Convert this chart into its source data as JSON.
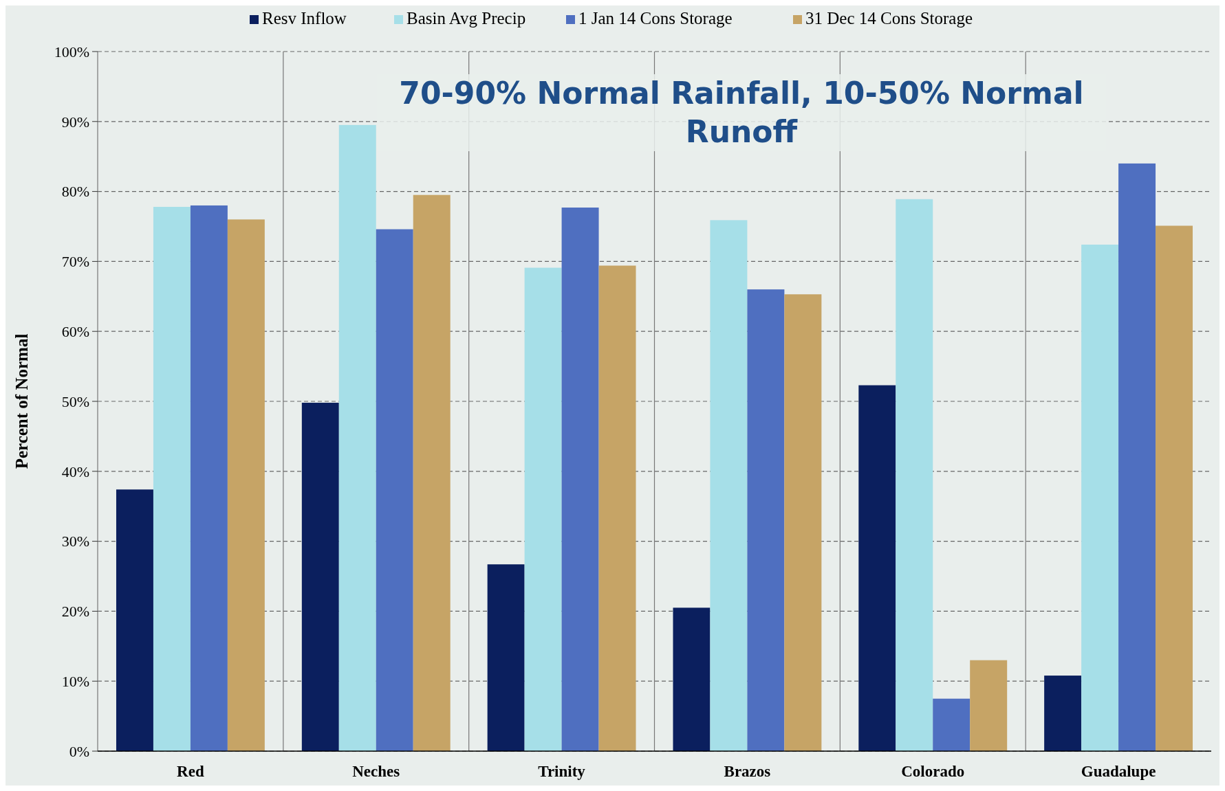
{
  "chart_data": {
    "type": "bar",
    "title": "70-90% Normal Rainfall, 10-50% Normal Runoff",
    "ylabel": "Percent of  Normal",
    "categories": [
      "Red",
      "Neches",
      "Trinity",
      "Brazos",
      "Colorado",
      "Guadalupe"
    ],
    "series": [
      {
        "name": "Resv Inflow",
        "color": "#0b1f5e",
        "values": [
          37.4,
          49.8,
          26.7,
          20.5,
          52.3,
          10.8
        ]
      },
      {
        "name": "Basin Avg Precip",
        "color": "#a6dfe8",
        "values": [
          77.8,
          89.5,
          69.1,
          75.9,
          78.9,
          72.4
        ]
      },
      {
        "name": "1 Jan 14 Cons Storage",
        "color": "#4f6fc0",
        "values": [
          78.0,
          74.6,
          77.7,
          66.0,
          7.5,
          84.0
        ]
      },
      {
        "name": "31 Dec 14 Cons Storage",
        "color": "#c6a466",
        "values": [
          76.0,
          79.5,
          69.4,
          65.3,
          13.0,
          75.1
        ]
      }
    ],
    "ylim": [
      0,
      100
    ],
    "yticks": [
      {
        "value": 0,
        "label": "0%"
      },
      {
        "value": 10,
        "label": "10%"
      },
      {
        "value": 20,
        "label": "20%"
      },
      {
        "value": 30,
        "label": "30%"
      },
      {
        "value": 40,
        "label": "40%"
      },
      {
        "value": 50,
        "label": "50%"
      },
      {
        "value": 60,
        "label": "60%"
      },
      {
        "value": 70,
        "label": "70%"
      },
      {
        "value": 80,
        "label": "80%"
      },
      {
        "value": 90,
        "label": "90%"
      },
      {
        "value": 100,
        "label": "100%"
      }
    ],
    "grid": "y",
    "legend": "top"
  }
}
